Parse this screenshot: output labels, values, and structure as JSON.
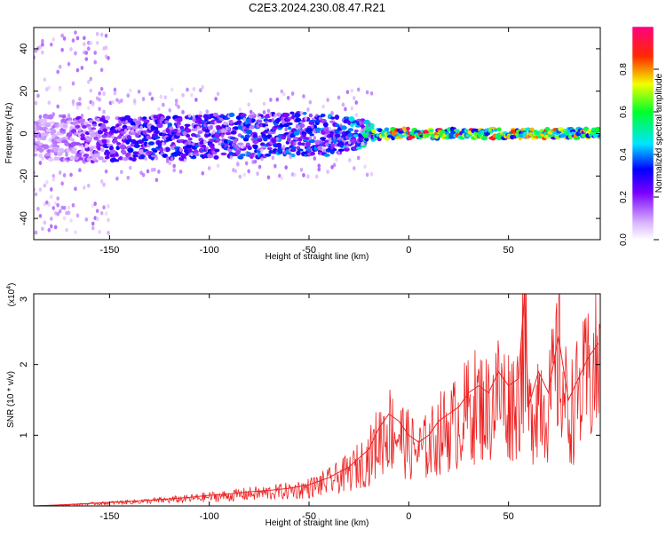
{
  "page_title": "C2E3.2024.230.08.47.R21",
  "colors": {
    "snr_line": "#ee2222",
    "axes": "#000000",
    "background": "#ffffff"
  },
  "chart_data": [
    {
      "type": "heatmap",
      "title": "C2E3.2024.230.08.47.R21",
      "xlabel": "Height of straight line (km)",
      "ylabel": "Frequency (Hz)",
      "xlim": [
        -188,
        96
      ],
      "ylim": [
        -50,
        50
      ],
      "xticks": [
        -150,
        -100,
        -50,
        0,
        50
      ],
      "yticks": [
        -40,
        -20,
        0,
        20,
        40
      ],
      "colorbar": {
        "label": "Normalized spectral amplitude",
        "range": [
          0,
          1
        ],
        "ticks": [
          0.0,
          0.2,
          0.4,
          0.6,
          0.8
        ],
        "tick_labels": [
          "0.0",
          "0.2",
          "0.4",
          "0.6",
          "0.8"
        ]
      },
      "signal_band": [
        {
          "x": -175,
          "center": -2,
          "half_width": 9,
          "amplitude": 0.12
        },
        {
          "x": -160,
          "center": -3,
          "half_width": 9,
          "amplitude": 0.22
        },
        {
          "x": -140,
          "center": -2,
          "half_width": 9,
          "amplitude": 0.28
        },
        {
          "x": -120,
          "center": -2,
          "half_width": 9,
          "amplitude": 0.3
        },
        {
          "x": -100,
          "center": -1,
          "half_width": 9,
          "amplitude": 0.32
        },
        {
          "x": -80,
          "center": -1,
          "half_width": 9,
          "amplitude": 0.33
        },
        {
          "x": -60,
          "center": 0,
          "half_width": 9,
          "amplitude": 0.34
        },
        {
          "x": -40,
          "center": -1,
          "half_width": 8,
          "amplitude": 0.34
        },
        {
          "x": -25,
          "center": 0,
          "half_width": 6,
          "amplitude": 0.4
        },
        {
          "x": -15,
          "center": 0,
          "half_width": 2,
          "amplitude": 0.7
        },
        {
          "x": 0,
          "center": 0,
          "half_width": 2,
          "amplitude": 0.8
        },
        {
          "x": 25,
          "center": 0,
          "half_width": 2,
          "amplitude": 0.75
        },
        {
          "x": 50,
          "center": 0,
          "half_width": 2,
          "amplitude": 0.72
        },
        {
          "x": 75,
          "center": 0,
          "half_width": 2,
          "amplitude": 0.7
        },
        {
          "x": 95,
          "center": 0,
          "half_width": 2,
          "amplitude": 0.6
        }
      ]
    },
    {
      "type": "line",
      "xlabel": "Height of straight line (km)",
      "ylabel": "SNR (10 * v/v)",
      "y_scale_label": "(x10",
      "y_scale_exponent": "4",
      "y_scale_close": ")",
      "xlim": [
        -188,
        96
      ],
      "ylim": [
        0,
        3.0
      ],
      "xticks": [
        -150,
        -100,
        -50,
        0,
        50
      ],
      "yticks": [
        1,
        2,
        3
      ],
      "series": [
        {
          "name": "SNR",
          "x": [
            -188,
            -170,
            -150,
            -130,
            -110,
            -100,
            -90,
            -80,
            -70,
            -60,
            -50,
            -40,
            -30,
            -20,
            -15,
            -10,
            -5,
            0,
            5,
            10,
            15,
            20,
            25,
            30,
            35,
            40,
            45,
            50,
            55,
            58,
            60,
            65,
            70,
            75,
            80,
            85,
            90,
            95
          ],
          "values": [
            0.0,
            0.02,
            0.05,
            0.08,
            0.12,
            0.15,
            0.17,
            0.2,
            0.22,
            0.25,
            0.3,
            0.4,
            0.55,
            0.8,
            1.1,
            1.3,
            1.2,
            1.0,
            0.9,
            1.0,
            1.2,
            1.3,
            1.4,
            1.6,
            1.7,
            1.6,
            1.9,
            1.7,
            1.8,
            3.0,
            1.4,
            1.9,
            1.6,
            2.4,
            1.5,
            1.8,
            2.1,
            2.3
          ]
        }
      ]
    }
  ]
}
